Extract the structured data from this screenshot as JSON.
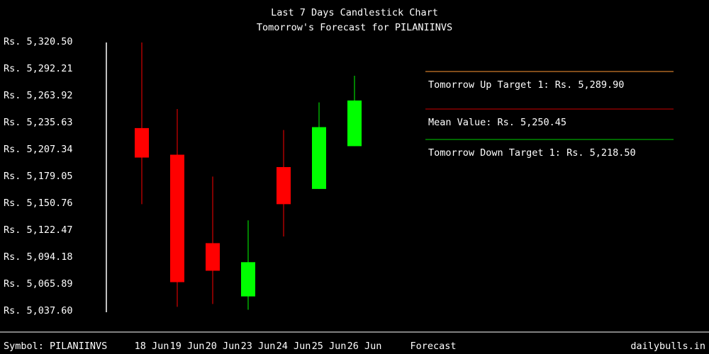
{
  "chart_data": {
    "type": "candlestick",
    "title": "Last 7 Days Candlestick Chart",
    "subtitle": "Tomorrow's Forecast for PILANIINVS",
    "ylim": [
      5037.6,
      5320.5
    ],
    "y_ticks": [
      "Rs. 5,320.50",
      "Rs. 5,292.21",
      "Rs. 5,263.92",
      "Rs. 5,235.63",
      "Rs. 5,207.34",
      "Rs. 5,179.05",
      "Rs. 5,150.76",
      "Rs. 5,122.47",
      "Rs. 5,094.18",
      "Rs. 5,065.89",
      "Rs. 5,037.60"
    ],
    "x_labels": [
      "18 Jun",
      "19 Jun",
      "20 Jun",
      "23 Jun",
      "24 Jun",
      "25 Jun",
      "26 Jun"
    ],
    "candles": [
      {
        "date": "18 Jun",
        "open": 5229,
        "high": 5319,
        "low": 5149,
        "close": 5198,
        "direction": "down"
      },
      {
        "date": "19 Jun",
        "open": 5201,
        "high": 5249,
        "low": 5041,
        "close": 5067,
        "direction": "down"
      },
      {
        "date": "20 Jun",
        "open": 5108,
        "high": 5178,
        "low": 5044,
        "close": 5079,
        "direction": "down"
      },
      {
        "date": "23 Jun",
        "open": 5052,
        "high": 5132,
        "low": 5038,
        "close": 5088,
        "direction": "up"
      },
      {
        "date": "24 Jun",
        "open": 5188,
        "high": 5227,
        "low": 5115,
        "close": 5149,
        "direction": "down"
      },
      {
        "date": "25 Jun",
        "open": 5165,
        "high": 5256,
        "low": 5165,
        "close": 5230,
        "direction": "up"
      },
      {
        "date": "26 Jun",
        "open": 5210,
        "high": 5284,
        "low": 5210,
        "close": 5258,
        "direction": "up"
      }
    ],
    "forecast": {
      "up_label": "Tomorrow Up Target 1: Rs. 5,289.90",
      "mean_label": "Mean Value: Rs. 5,250.45",
      "down_label": "Tomorrow Down Target 1: Rs. 5,218.50"
    },
    "colors": {
      "up": "#00ff00",
      "down": "#ff0000",
      "up_target_line": "#ff9933",
      "mean_line": "#cc0000",
      "down_target_line": "#00cc00",
      "background": "#000000",
      "text": "#ffffff"
    }
  },
  "footer": {
    "symbol": "Symbol: PILANIINVS",
    "forecast": "Forecast",
    "brand": "dailybulls.in"
  }
}
